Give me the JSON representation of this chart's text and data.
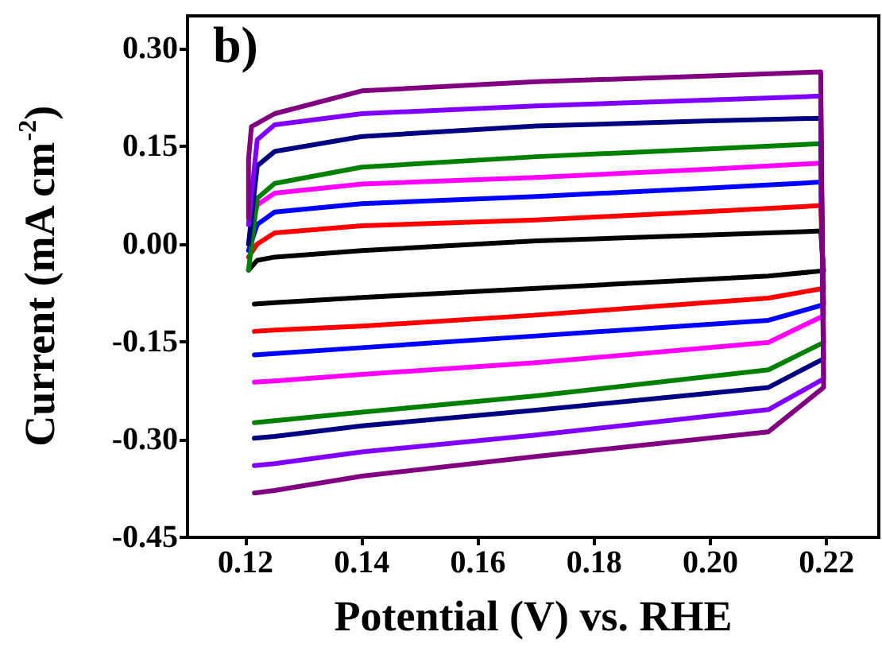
{
  "chart_data": {
    "type": "line",
    "xlabel": "Potential (V) vs. RHE",
    "ylabel": "Current (mA cm$^{-2}$)",
    "annotations": [
      "b)"
    ],
    "xlim": [
      0.11,
      0.229
    ],
    "ylim": [
      -0.45,
      0.35
    ],
    "xticks": [
      {
        "value": 0.12,
        "label": "0.12"
      },
      {
        "value": 0.14,
        "label": "0.14"
      },
      {
        "value": 0.16,
        "label": "0.16"
      },
      {
        "value": 0.18,
        "label": "0.18"
      },
      {
        "value": 0.2,
        "label": "0.20"
      },
      {
        "value": 0.22,
        "label": "0.22"
      }
    ],
    "yticks": [
      {
        "value": -0.45,
        "label": "-0.45"
      },
      {
        "value": -0.3,
        "label": "-0.30"
      },
      {
        "value": -0.15,
        "label": "-0.15"
      },
      {
        "value": 0,
        "label": "0.00"
      },
      {
        "value": 0.15,
        "label": "0.15"
      },
      {
        "value": 0.3,
        "label": "0.30"
      }
    ],
    "grid": false,
    "marker": "none",
    "line_style": "solid",
    "series": [
      {
        "color": "#000000",
        "x": [
          0.1205,
          0.122,
          0.125,
          0.14,
          0.17,
          0.2,
          0.219,
          0.2195,
          0.21,
          0.17,
          0.14,
          0.125,
          0.1215
        ],
        "values": [
          -0.04,
          -0.025,
          -0.02,
          -0.01,
          0.005,
          0.014,
          0.02,
          -0.041,
          -0.049,
          -0.068,
          -0.082,
          -0.09,
          -0.092
        ]
      },
      {
        "color": "#ff0000",
        "x": [
          0.1205,
          0.122,
          0.125,
          0.14,
          0.17,
          0.2,
          0.219,
          0.2195,
          0.21,
          0.17,
          0.14,
          0.125,
          0.1215
        ],
        "values": [
          -0.02,
          0.0,
          0.017,
          0.028,
          0.037,
          0.05,
          0.059,
          -0.068,
          -0.083,
          -0.109,
          -0.126,
          -0.132,
          -0.134
        ]
      },
      {
        "color": "#0000ff",
        "x": [
          0.1205,
          0.122,
          0.125,
          0.14,
          0.17,
          0.2,
          0.219,
          0.2195,
          0.21,
          0.17,
          0.14,
          0.125,
          0.1215
        ],
        "values": [
          -0.01,
          0.03,
          0.049,
          0.062,
          0.073,
          0.086,
          0.095,
          -0.093,
          -0.117,
          -0.141,
          -0.159,
          -0.168,
          -0.17
        ]
      },
      {
        "color": "#ff00ff",
        "x": [
          0.1205,
          0.122,
          0.125,
          0.14,
          0.17,
          0.2,
          0.219,
          0.2195,
          0.21,
          0.17,
          0.14,
          0.125,
          0.1215
        ],
        "values": [
          0.0,
          0.06,
          0.078,
          0.092,
          0.102,
          0.115,
          0.124,
          -0.11,
          -0.151,
          -0.182,
          -0.2,
          -0.21,
          -0.212
        ]
      },
      {
        "color": "#008000",
        "x": [
          0.1205,
          0.122,
          0.125,
          0.14,
          0.17,
          0.2,
          0.219,
          0.2195,
          0.21,
          0.17,
          0.14,
          0.125,
          0.1215
        ],
        "values": [
          -0.04,
          0.07,
          0.093,
          0.118,
          0.134,
          0.146,
          0.154,
          -0.151,
          -0.193,
          -0.233,
          -0.258,
          -0.271,
          -0.274
        ]
      },
      {
        "color": "#000080",
        "x": [
          0.1205,
          0.122,
          0.125,
          0.14,
          0.17,
          0.2,
          0.219,
          0.2195,
          0.21,
          0.17,
          0.14,
          0.125,
          0.1215
        ],
        "values": [
          0.0,
          0.12,
          0.142,
          0.165,
          0.181,
          0.189,
          0.193,
          -0.176,
          -0.22,
          -0.255,
          -0.279,
          -0.295,
          -0.298
        ]
      },
      {
        "color": "#8000ff",
        "x": [
          0.1205,
          0.122,
          0.125,
          0.14,
          0.17,
          0.2,
          0.219,
          0.2195,
          0.21,
          0.17,
          0.14,
          0.125,
          0.1215
        ],
        "values": [
          0.03,
          0.16,
          0.183,
          0.2,
          0.212,
          0.221,
          0.227,
          -0.207,
          -0.254,
          -0.293,
          -0.319,
          -0.337,
          -0.34
        ]
      },
      {
        "color": "#800080",
        "x": [
          0.1205,
          0.1205,
          0.121,
          0.125,
          0.14,
          0.17,
          0.2,
          0.219,
          0.2195,
          0.21,
          0.17,
          0.14,
          0.125,
          0.1215
        ],
        "values": [
          0.04,
          0.13,
          0.18,
          0.2,
          0.235,
          0.249,
          0.258,
          0.264,
          -0.22,
          -0.288,
          -0.326,
          -0.356,
          -0.378,
          -0.382
        ]
      }
    ]
  }
}
